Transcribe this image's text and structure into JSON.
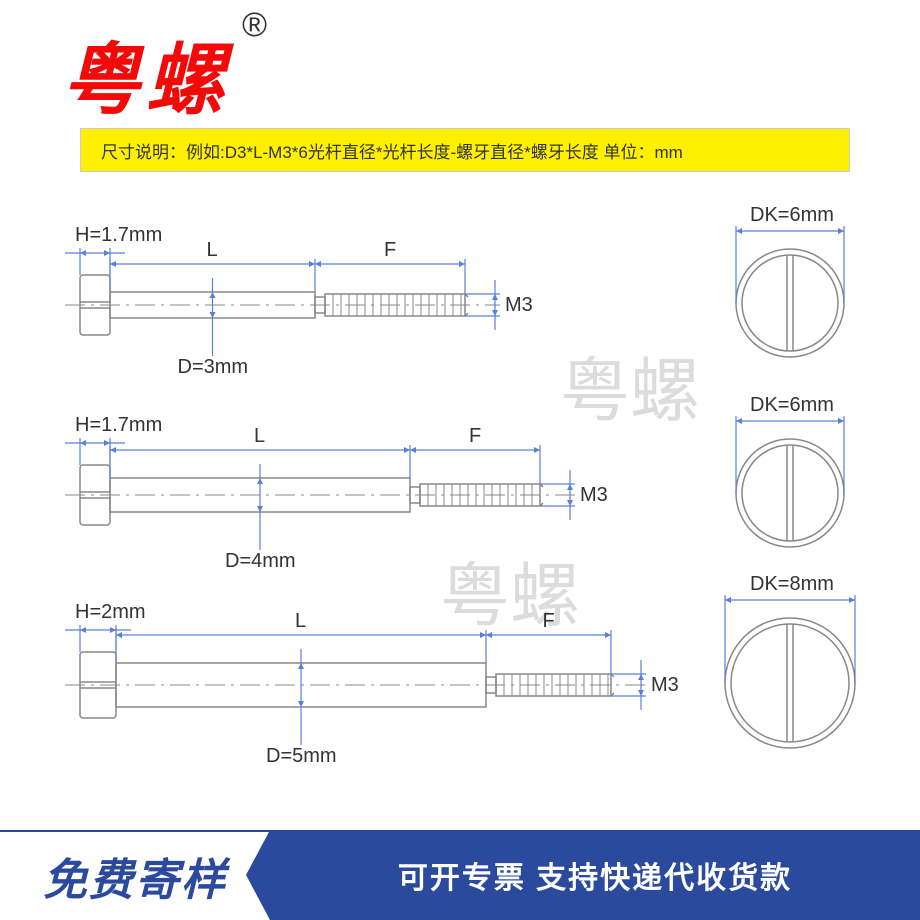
{
  "brand": {
    "name": "粤螺",
    "registered": "®"
  },
  "description": "尺寸说明：例如:D3*L-M3*6光杆直径*光杆长度-螺牙直径*螺牙长度  单位：mm",
  "watermarks": [
    "粤螺",
    "粤螺"
  ],
  "screws": [
    {
      "H": "H=1.7mm",
      "L": "L",
      "F": "F",
      "D": "D=3mm",
      "M": "M3",
      "DK": "DK=6mm",
      "geom": {
        "head_w": 30,
        "shank_l": 205,
        "shank_h": 26,
        "thread_l": 140,
        "thread_h": 22,
        "dk": 108,
        "head_h": 60
      }
    },
    {
      "H": "H=1.7mm",
      "L": "L",
      "F": "F",
      "D": "D=4mm",
      "M": "M3",
      "DK": "DK=6mm",
      "geom": {
        "head_w": 30,
        "shank_l": 300,
        "shank_h": 34,
        "thread_l": 120,
        "thread_h": 22,
        "dk": 108,
        "head_h": 60
      }
    },
    {
      "H": "H=2mm",
      "L": "L",
      "F": "F",
      "D": "D=5mm",
      "M": "M3",
      "DK": "DK=8mm",
      "geom": {
        "head_w": 36,
        "shank_l": 370,
        "shank_h": 44,
        "thread_l": 115,
        "thread_h": 22,
        "dk": 130,
        "head_h": 66
      }
    }
  ],
  "footer": {
    "left": "免费寄样",
    "right": "可开专票 支持快递代收货款"
  },
  "colors": {
    "brand": "#f40909",
    "bar": "#fff000",
    "dim": "#5a7fd9",
    "footer": "#2b4a9e",
    "part": "#888"
  }
}
